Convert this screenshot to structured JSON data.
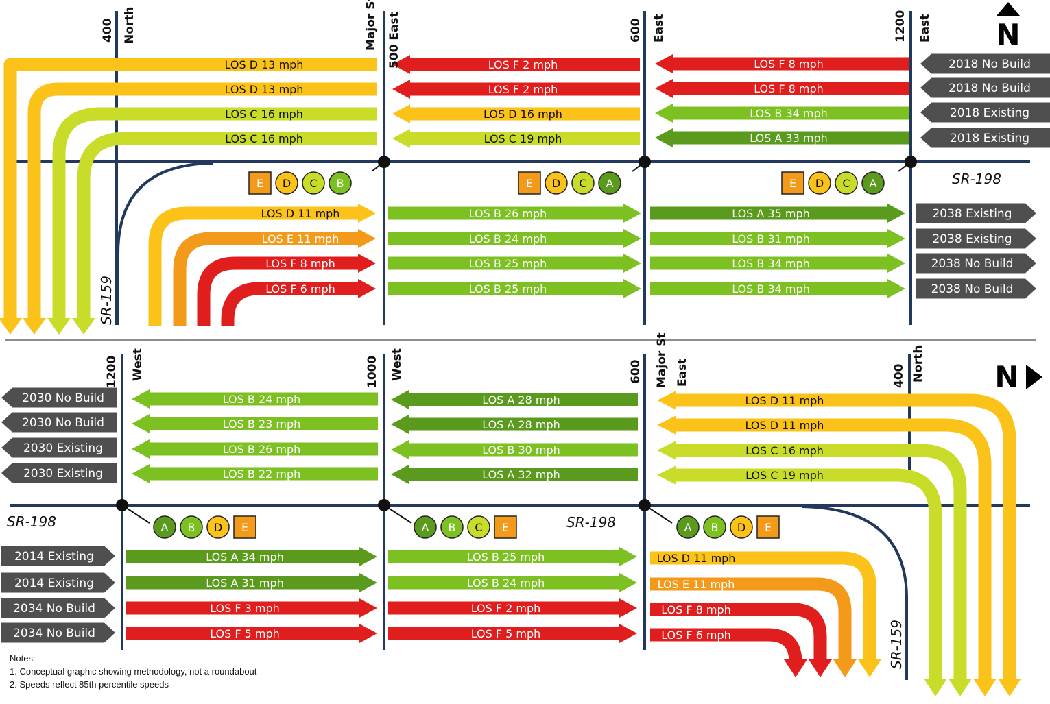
{
  "colors": {
    "A": "#5a9a1c",
    "B": "#7cc022",
    "C": "#c9dc2a",
    "D": "#fbc21a",
    "E": "#f39a1a",
    "F": "#e01e1e",
    "road": "#22385c",
    "label": "#4f4f4f"
  },
  "panel_top": {
    "north_symbol": "N",
    "road_main": "SR-198",
    "road_side": "SR-159",
    "streets": [
      {
        "number": "400",
        "name": "North"
      },
      {
        "number": "500 East",
        "name": "Major St"
      },
      {
        "number": "600",
        "name": "East"
      },
      {
        "number": "1200",
        "name": "East"
      }
    ],
    "left_labels": [],
    "right_labels": [
      "2018 No Build",
      "2018 No Build",
      "2018 Existing",
      "2018 Existing",
      "2038 Existing",
      "2038 Existing",
      "2038 No Build",
      "2038 No Build"
    ],
    "seg1_upper": [
      {
        "los": "D",
        "text": "LOS D 13 mph"
      },
      {
        "los": "D",
        "text": "LOS D 13 mph"
      },
      {
        "los": "C",
        "text": "LOS C 16 mph"
      },
      {
        "los": "C",
        "text": "LOS C 16 mph"
      }
    ],
    "seg2_upper": [
      {
        "los": "F",
        "text": "LOS F 2 mph"
      },
      {
        "los": "F",
        "text": "LOS F 2 mph"
      },
      {
        "los": "D",
        "text": "LOS D 16 mph"
      },
      {
        "los": "C",
        "text": "LOS C 19 mph"
      }
    ],
    "seg3_upper": [
      {
        "los": "F",
        "text": "LOS F 8 mph"
      },
      {
        "los": "F",
        "text": "LOS F 8 mph"
      },
      {
        "los": "B",
        "text": "LOS B 34 mph"
      },
      {
        "los": "A",
        "text": "LOS A 33 mph"
      }
    ],
    "seg1_lower": [
      {
        "los": "D",
        "text": "LOS D 11 mph"
      },
      {
        "los": "E",
        "text": "LOS E 11 mph"
      },
      {
        "los": "F",
        "text": "LOS F 8 mph"
      },
      {
        "los": "F",
        "text": "LOS F 6 mph"
      }
    ],
    "seg2_lower": [
      {
        "los": "B",
        "text": "LOS B 26 mph"
      },
      {
        "los": "B",
        "text": "LOS B 24 mph"
      },
      {
        "los": "B",
        "text": "LOS B 25 mph"
      },
      {
        "los": "B",
        "text": "LOS B 25 mph"
      }
    ],
    "seg3_lower": [
      {
        "los": "A",
        "text": "LOS A 35 mph"
      },
      {
        "los": "B",
        "text": "LOS B 31 mph"
      },
      {
        "los": "B",
        "text": "LOS B 34 mph"
      },
      {
        "los": "B",
        "text": "LOS B 34 mph"
      }
    ],
    "intersections": [
      [
        {
          "los": "E",
          "shape": "square"
        },
        {
          "los": "D",
          "shape": "circle"
        },
        {
          "los": "C",
          "shape": "circle"
        },
        {
          "los": "B",
          "shape": "circle"
        }
      ],
      [
        {
          "los": "E",
          "shape": "square"
        },
        {
          "los": "D",
          "shape": "circle"
        },
        {
          "los": "C",
          "shape": "circle"
        },
        {
          "los": "A",
          "shape": "circle"
        }
      ],
      [
        {
          "los": "E",
          "shape": "square"
        },
        {
          "los": "D",
          "shape": "circle"
        },
        {
          "los": "C",
          "shape": "circle"
        },
        {
          "los": "A",
          "shape": "circle"
        }
      ]
    ]
  },
  "panel_bottom": {
    "north_symbol": "N",
    "road_main": "SR-198",
    "road_side": "SR-159",
    "streets": [
      {
        "number": "1200",
        "name": "West"
      },
      {
        "number": "1000",
        "name": "West"
      },
      {
        "number": "600",
        "name": "East"
      },
      {
        "number": "400",
        "name": "North"
      }
    ],
    "major_label": "Major St",
    "left_labels": [
      "2030 No Build",
      "2030 No Build",
      "2030 Existing",
      "2030 Existing",
      "2014 Existing",
      "2014 Existing",
      "2034 No Build",
      "2034 No Build"
    ],
    "seg1_upper": [
      {
        "los": "B",
        "text": "LOS B 24 mph"
      },
      {
        "los": "B",
        "text": "LOS B 23 mph"
      },
      {
        "los": "B",
        "text": "LOS B 26 mph"
      },
      {
        "los": "B",
        "text": "LOS B 22 mph"
      }
    ],
    "seg2_upper": [
      {
        "los": "A",
        "text": "LOS A 28 mph"
      },
      {
        "los": "A",
        "text": "LOS A 28 mph"
      },
      {
        "los": "B",
        "text": "LOS B 30 mph"
      },
      {
        "los": "A",
        "text": "LOS A 32 mph"
      }
    ],
    "seg3_upper": [
      {
        "los": "D",
        "text": "LOS D 11 mph"
      },
      {
        "los": "D",
        "text": "LOS D 11 mph"
      },
      {
        "los": "C",
        "text": "LOS C 16 mph"
      },
      {
        "los": "C",
        "text": "LOS C 19 mph"
      }
    ],
    "seg1_lower": [
      {
        "los": "A",
        "text": "LOS A 34 mph"
      },
      {
        "los": "A",
        "text": "LOS A 31 mph"
      },
      {
        "los": "F",
        "text": "LOS F 3 mph"
      },
      {
        "los": "F",
        "text": "LOS F 5 mph"
      }
    ],
    "seg2_lower": [
      {
        "los": "B",
        "text": "LOS B 25 mph"
      },
      {
        "los": "B",
        "text": "LOS B 24 mph"
      },
      {
        "los": "F",
        "text": "LOS F 2 mph"
      },
      {
        "los": "F",
        "text": "LOS F 5 mph"
      }
    ],
    "seg3_lower": [
      {
        "los": "D",
        "text": "LOS D 11 mph"
      },
      {
        "los": "E",
        "text": "LOS E 11 mph"
      },
      {
        "los": "F",
        "text": "LOS F 8 mph"
      },
      {
        "los": "F",
        "text": "LOS F 6 mph"
      }
    ],
    "intersections": [
      [
        {
          "los": "A",
          "shape": "circle"
        },
        {
          "los": "B",
          "shape": "circle"
        },
        {
          "los": "D",
          "shape": "circle"
        },
        {
          "los": "E",
          "shape": "square"
        }
      ],
      [
        {
          "los": "A",
          "shape": "circle"
        },
        {
          "los": "B",
          "shape": "circle"
        },
        {
          "los": "C",
          "shape": "circle"
        },
        {
          "los": "E",
          "shape": "square"
        }
      ],
      [
        {
          "los": "A",
          "shape": "circle"
        },
        {
          "los": "B",
          "shape": "circle"
        },
        {
          "los": "D",
          "shape": "circle"
        },
        {
          "los": "E",
          "shape": "square"
        }
      ]
    ]
  },
  "notes": {
    "heading": "Notes:",
    "items": [
      "1. Conceptual graphic showing methodology, not a roundabout",
      "2. Speeds reflect 85th percentile speeds"
    ]
  }
}
